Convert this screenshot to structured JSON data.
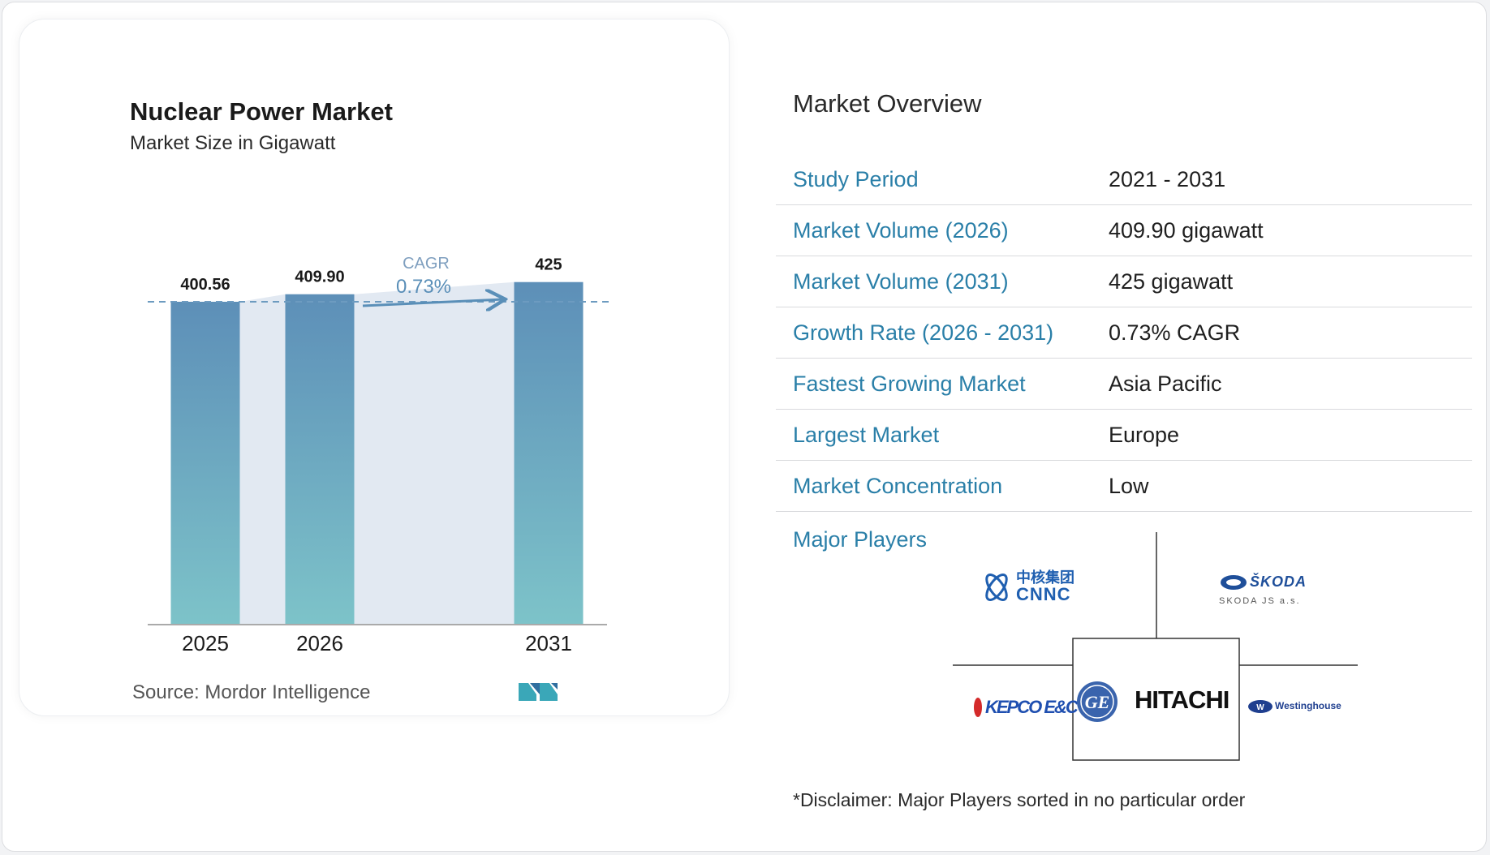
{
  "chart_data": {
    "type": "bar",
    "title": "Nuclear Power Market",
    "subtitle": "Market Size in Gigawatt",
    "categories": [
      "2025",
      "2026",
      "2031"
    ],
    "values": [
      400.56,
      409.9,
      425
    ],
    "value_labels": [
      "400.56",
      "409.90",
      "425"
    ],
    "cagr": {
      "label": "CAGR",
      "value": "0.73%"
    },
    "grid": false,
    "colors": {
      "bar_top": "#5d8fb8",
      "bar_bottom": "#7dc3c9",
      "band": "#e2e9f2",
      "accent": "#5a8fb8"
    }
  },
  "source": "Source: Mordor Intelligence",
  "overview": {
    "title": "Market Overview",
    "rows": [
      {
        "label": "Study Period",
        "value": "2021 - 2031"
      },
      {
        "label": "Market Volume (2026)",
        "value": "409.90 gigawatt"
      },
      {
        "label": "Market Volume (2031)",
        "value": "425 gigawatt"
      },
      {
        "label": "Growth Rate (2026 - 2031)",
        "value": "0.73% CAGR"
      },
      {
        "label": "Fastest Growing Market",
        "value": "Asia Pacific"
      },
      {
        "label": "Largest Market",
        "value": "Europe"
      },
      {
        "label": "Market Concentration",
        "value": "Low"
      }
    ],
    "players_label": "Major Players",
    "logos": {
      "cnnc_cn": "中核集团",
      "cnnc": "CNNC",
      "skoda": "ŠKODA",
      "skoda_sub": "SKODA JS a.s.",
      "kepco": "KEPCO E&C",
      "ge": "GE",
      "hitachi": "HITACHI",
      "westinghouse": "Westinghouse"
    },
    "disclaimer": "*Disclaimer: Major Players sorted in no particular order"
  }
}
